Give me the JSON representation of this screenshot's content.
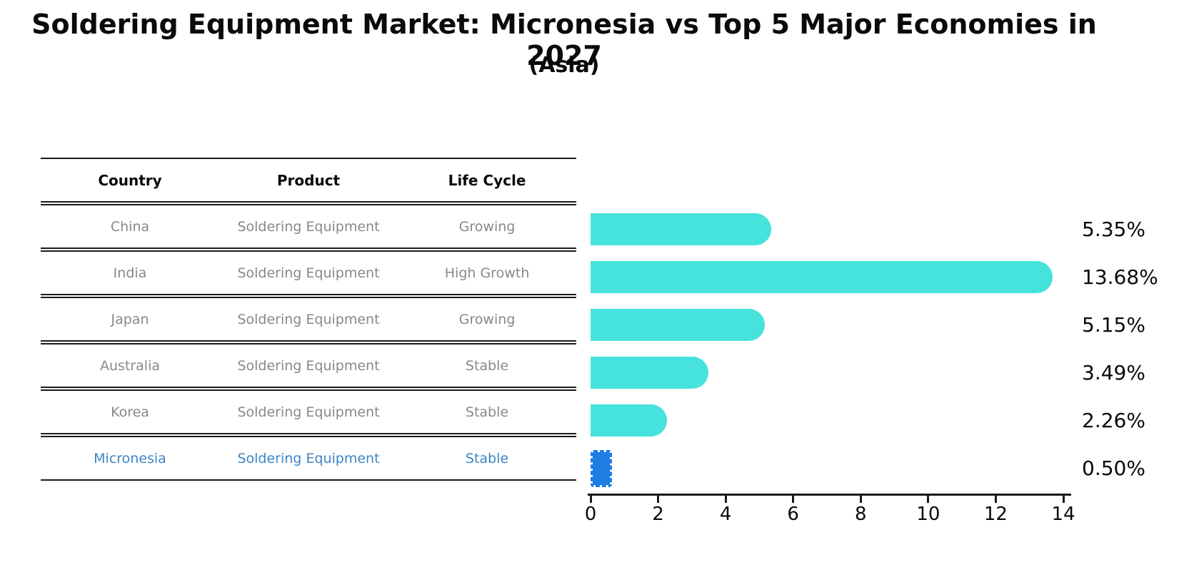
{
  "title": "Soldering Equipment Market: Micronesia vs Top 5 Major Economies in 2027",
  "subtitle": "(Asia)",
  "colors": {
    "bar_cyan": "#45e3dc",
    "bar_highlight_blue": "#1e7ce2",
    "highlight_text_blue": "#3d85c6",
    "table_text_gray": "#888888",
    "text_black": "#0a0a0a"
  },
  "table": {
    "columns": [
      "Country",
      "Product",
      "Life Cycle"
    ],
    "rows": [
      {
        "country": "China",
        "product": "Soldering Equipment",
        "life_cycle": "Growing",
        "highlight": false
      },
      {
        "country": "India",
        "product": "Soldering Equipment",
        "life_cycle": "High Growth",
        "highlight": false
      },
      {
        "country": "Japan",
        "product": "Soldering Equipment",
        "life_cycle": "Growing",
        "highlight": false
      },
      {
        "country": "Australia",
        "product": "Soldering Equipment",
        "life_cycle": "Stable",
        "highlight": false
      },
      {
        "country": "Korea",
        "product": "Soldering Equipment",
        "life_cycle": "Stable",
        "highlight": false
      },
      {
        "country": "Micronesia",
        "product": "Soldering Equipment",
        "life_cycle": "Stable",
        "highlight": true
      }
    ]
  },
  "chart_data": {
    "type": "bar",
    "orientation": "horizontal",
    "title": "Soldering Equipment Market: Micronesia vs Top 5 Major Economies in 2027 (Asia)",
    "categories": [
      "China",
      "India",
      "Japan",
      "Australia",
      "Korea",
      "Micronesia"
    ],
    "values": [
      5.35,
      13.68,
      5.15,
      3.49,
      2.26,
      0.5
    ],
    "value_labels": [
      "5.35%",
      "13.68%",
      "5.15%",
      "3.49%",
      "2.26%",
      "0.50%"
    ],
    "highlight_category": "Micronesia",
    "xlabel": "",
    "ylabel": "",
    "xlim": [
      0,
      14
    ],
    "x_ticks": [
      0,
      2,
      4,
      6,
      8,
      10,
      12,
      14
    ],
    "grid": false,
    "legend": false
  }
}
